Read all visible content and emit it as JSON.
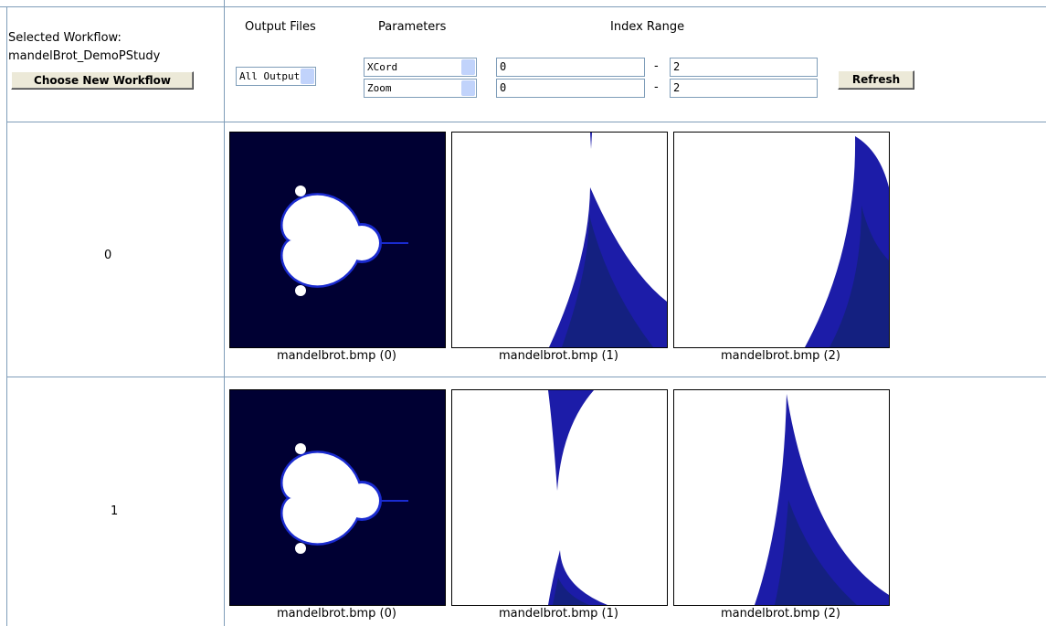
{
  "header": {
    "selected_workflow_label": "Selected Workflow:",
    "workflow_name": "mandelBrot_DemoPStudy",
    "choose_button": "Choose New Workflow",
    "columns": {
      "output_files": "Output Files",
      "parameters": "Parameters",
      "index_range": "Index Range"
    }
  },
  "controls": {
    "output_select": "All Output",
    "parameters": [
      {
        "name": "XCord",
        "start": "0",
        "end": "2"
      },
      {
        "name": "Zoom",
        "start": "0",
        "end": "2"
      }
    ],
    "range_separator": "-",
    "refresh_button": "Refresh"
  },
  "rows": [
    {
      "index": "0",
      "images": [
        "mandelbrot.bmp (0)",
        "mandelbrot.bmp (1)",
        "mandelbrot.bmp (2)"
      ]
    },
    {
      "index": "1",
      "images": [
        "mandelbrot.bmp (0)",
        "mandelbrot.bmp (1)",
        "mandelbrot.bmp (2)"
      ]
    }
  ]
}
